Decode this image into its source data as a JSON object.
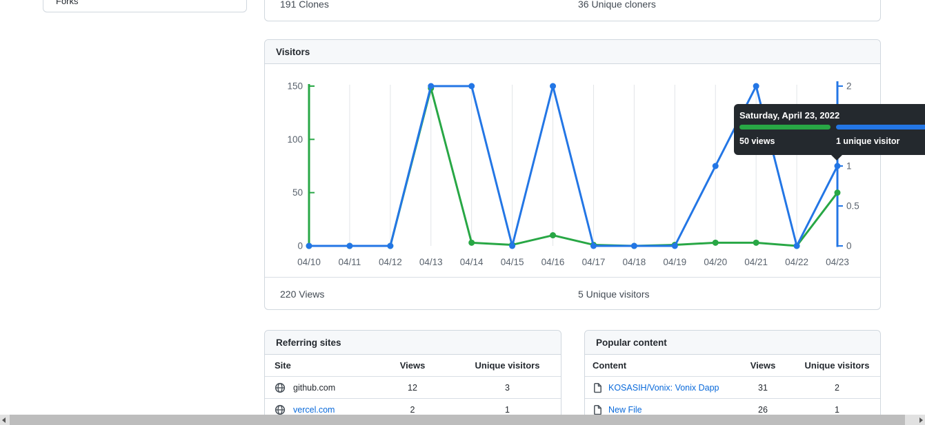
{
  "sidebar": {
    "item_forks": "Forks"
  },
  "clones_summary": {
    "clones": "191 Clones",
    "unique_cloners": "36 Unique cloners"
  },
  "visitors_card": {
    "title": "Visitors",
    "views_total": "220 Views",
    "unique_total": "5 Unique visitors"
  },
  "chart_data": {
    "type": "line",
    "title": "Visitors",
    "x": [
      "04/10",
      "04/11",
      "04/12",
      "04/13",
      "04/14",
      "04/15",
      "04/16",
      "04/17",
      "04/18",
      "04/19",
      "04/20",
      "04/21",
      "04/22",
      "04/23"
    ],
    "series": [
      {
        "name": "Views",
        "axis": "left",
        "color": "#28a745",
        "values": [
          0,
          0,
          0,
          148,
          3,
          1,
          10,
          1,
          0,
          1,
          3,
          3,
          0,
          50
        ]
      },
      {
        "name": "Unique visitors",
        "axis": "right",
        "color": "#2376e5",
        "values": [
          0,
          0,
          0,
          2,
          2,
          0,
          2,
          0,
          0,
          0,
          1,
          2,
          0,
          1
        ]
      }
    ],
    "left_axis": {
      "range": [
        0,
        150
      ],
      "ticks": [
        0,
        50,
        100,
        150
      ],
      "color": "#28a745"
    },
    "right_axis": {
      "range": [
        0,
        2
      ],
      "ticks": [
        0,
        0.5,
        1,
        2
      ],
      "color": "#2376e5"
    },
    "grid": "vertical",
    "legend": "none"
  },
  "tooltip": {
    "title": "Saturday, April 23, 2022",
    "views_label": "50 views",
    "unique_label": "1 unique visitor"
  },
  "referring": {
    "title": "Referring sites",
    "columns": [
      "Site",
      "Views",
      "Unique visitors"
    ],
    "rows": [
      {
        "site": "github.com",
        "views": "12",
        "unique": "3"
      },
      {
        "site": "vercel.com",
        "views": "2",
        "unique": "1"
      }
    ]
  },
  "popular": {
    "title": "Popular content",
    "columns": [
      "Content",
      "Views",
      "Unique visitors"
    ],
    "rows": [
      {
        "content": "KOSASIH/Vonix: Vonix Dapp",
        "views": "31",
        "unique": "2"
      },
      {
        "content": "New File",
        "views": "26",
        "unique": "1"
      }
    ]
  },
  "colors": {
    "views_green": "#28a745",
    "unique_blue": "#2376e5",
    "card_border": "#d0d7de",
    "header_bg": "#f6f8fa",
    "gridline": "#e1e4e8",
    "axis_label": "#59626d",
    "tooltip_bg": "#24292e",
    "link_blue": "#0969da"
  }
}
